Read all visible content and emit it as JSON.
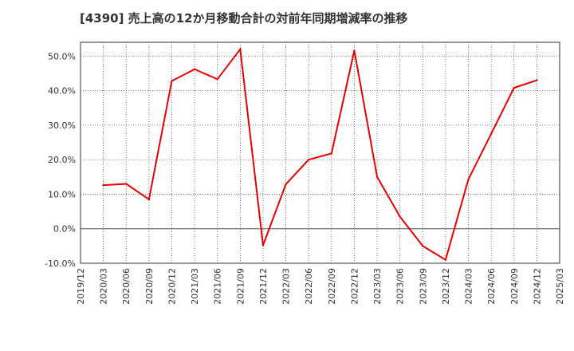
{
  "chart_data": {
    "type": "line",
    "title": "[4390]  売上高の12か月移動合計の対前年同期増減率の推移",
    "xlabel": "",
    "ylabel": "",
    "ylim": [
      -10,
      54
    ],
    "y_ticks": [
      -10,
      0,
      10,
      20,
      30,
      40,
      50
    ],
    "y_tick_labels": [
      "-10.0%",
      "0.0%",
      "10.0%",
      "20.0%",
      "30.0%",
      "40.0%",
      "50.0%"
    ],
    "x_tick_labels": [
      "2019/12",
      "2020/03",
      "2020/06",
      "2020/09",
      "2020/12",
      "2021/03",
      "2021/06",
      "2021/09",
      "2021/12",
      "2022/03",
      "2022/06",
      "2022/09",
      "2022/12",
      "2023/03",
      "2023/06",
      "2023/09",
      "2023/12",
      "2024/03",
      "2024/06",
      "2024/09",
      "2024/12",
      "2025/03"
    ],
    "grid": true,
    "series": [
      {
        "name": "増減率",
        "color": "#e60000",
        "x": [
          "2020/03",
          "2020/06",
          "2020/09",
          "2020/12",
          "2021/03",
          "2021/06",
          "2021/09",
          "2021/12",
          "2022/03",
          "2022/06",
          "2022/09",
          "2022/12",
          "2023/03",
          "2023/06",
          "2023/09",
          "2023/12",
          "2024/03",
          "2024/06",
          "2024/09",
          "2024/12"
        ],
        "values": [
          12.6,
          13.0,
          8.5,
          42.8,
          46.2,
          43.3,
          52.0,
          -4.8,
          12.9,
          20.0,
          21.8,
          51.6,
          15.0,
          3.5,
          -5.0,
          -9.0,
          14.3,
          27.5,
          40.8,
          43.0
        ]
      }
    ]
  }
}
